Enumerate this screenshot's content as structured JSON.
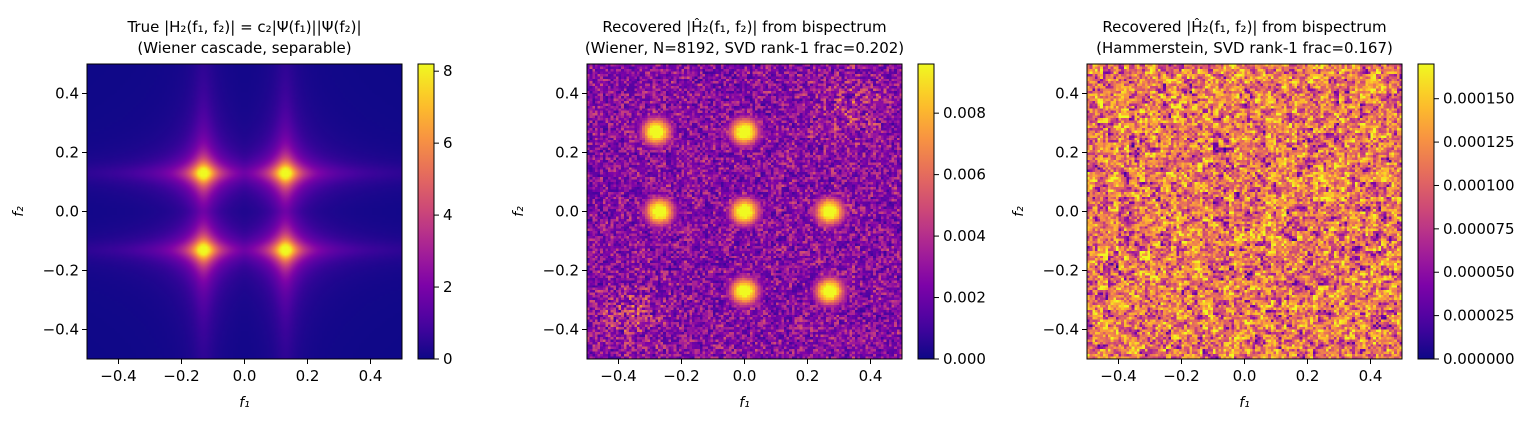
{
  "chart_data": [
    {
      "type": "heatmap",
      "title_line1": "True |H₂(f₁, f₂)| = c₂|Ψ(f₁)||Ψ(f₂)|",
      "title_line2": "(Wiener cascade, separable)",
      "xlabel": "f₁",
      "ylabel": "f₂",
      "xlim": [
        -0.5,
        0.5
      ],
      "ylim": [
        -0.5,
        0.5
      ],
      "xticks": [
        "−0.4",
        "−0.2",
        "0.0",
        "0.2",
        "0.4"
      ],
      "xtick_values": [
        -0.4,
        -0.2,
        0.0,
        0.2,
        0.4
      ],
      "yticks": [
        "0.4",
        "0.2",
        "0.0",
        "−0.2",
        "−0.4"
      ],
      "ytick_values": [
        0.4,
        0.2,
        0.0,
        -0.2,
        -0.4
      ],
      "colormap": "plasma",
      "colorbar": {
        "range": [
          0,
          8.2
        ],
        "ticks": [
          "0",
          "2",
          "4",
          "6",
          "8"
        ],
        "tick_values": [
          0,
          2,
          4,
          6,
          8
        ]
      },
      "pattern": {
        "kind": "separable",
        "peak_freq": 0.13,
        "peak_value": 8.2
      }
    },
    {
      "type": "heatmap",
      "title_line1": "Recovered |Ĥ₂(f₁, f₂)| from bispectrum",
      "title_line2": "(Wiener, N=8192, SVD rank-1 frac=0.202)",
      "xlabel": "f₁",
      "ylabel": "f₂",
      "xlim": [
        -0.5,
        0.5
      ],
      "ylim": [
        -0.5,
        0.5
      ],
      "xticks": [
        "−0.4",
        "−0.2",
        "0.0",
        "0.2",
        "0.4"
      ],
      "xtick_values": [
        -0.4,
        -0.2,
        0.0,
        0.2,
        0.4
      ],
      "yticks": [
        "0.4",
        "0.2",
        "0.0",
        "−0.2",
        "−0.4"
      ],
      "ytick_values": [
        0.4,
        0.2,
        0.0,
        -0.2,
        -0.4
      ],
      "colormap": "plasma",
      "colorbar": {
        "range": [
          0,
          0.0096
        ],
        "ticks": [
          "0.000",
          "0.002",
          "0.004",
          "0.006",
          "0.008"
        ],
        "tick_values": [
          0,
          0.002,
          0.004,
          0.006,
          0.008
        ]
      },
      "pattern": {
        "kind": "blobs",
        "blob_centers": [
          [
            -0.28,
            0.27
          ],
          [
            0.0,
            0.27
          ],
          [
            -0.27,
            0.0
          ],
          [
            0.0,
            0.0
          ],
          [
            0.27,
            0.0
          ],
          [
            0.0,
            -0.27
          ],
          [
            0.27,
            -0.27
          ]
        ]
      }
    },
    {
      "type": "heatmap",
      "title_line1": "Recovered |Ĥ₂(f₁, f₂)| from bispectrum",
      "title_line2": "(Hammerstein, SVD rank-1 frac=0.167)",
      "xlabel": "f₁",
      "ylabel": "f₂",
      "xlim": [
        -0.5,
        0.5
      ],
      "ylim": [
        -0.5,
        0.5
      ],
      "xticks": [
        "−0.4",
        "−0.2",
        "0.0",
        "0.2",
        "0.4"
      ],
      "xtick_values": [
        -0.4,
        -0.2,
        0.0,
        0.2,
        0.4
      ],
      "yticks": [
        "0.4",
        "0.2",
        "0.0",
        "−0.2",
        "−0.4"
      ],
      "ytick_values": [
        0.4,
        0.2,
        0.0,
        -0.2,
        -0.4
      ],
      "colormap": "plasma",
      "colorbar": {
        "range": [
          0,
          0.00017
        ],
        "ticks": [
          "0.000000",
          "0.000025",
          "0.000050",
          "0.000075",
          "0.000100",
          "0.000125",
          "0.000150"
        ],
        "tick_values": [
          0,
          2.5e-05,
          5e-05,
          7.5e-05,
          0.0001,
          0.000125,
          0.00015
        ]
      },
      "pattern": {
        "kind": "noise"
      }
    }
  ]
}
